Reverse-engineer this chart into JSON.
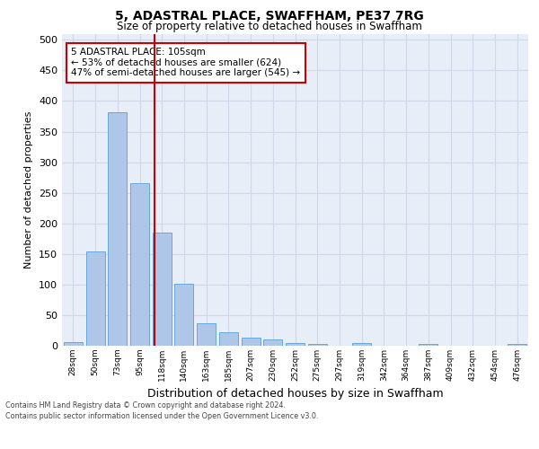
{
  "title1": "5, ADASTRAL PLACE, SWAFFHAM, PE37 7RG",
  "title2": "Size of property relative to detached houses in Swaffham",
  "xlabel": "Distribution of detached houses by size in Swaffham",
  "ylabel": "Number of detached properties",
  "footnote1": "Contains HM Land Registry data © Crown copyright and database right 2024.",
  "footnote2": "Contains public sector information licensed under the Open Government Licence v3.0.",
  "bar_labels": [
    "28sqm",
    "50sqm",
    "73sqm",
    "95sqm",
    "118sqm",
    "140sqm",
    "163sqm",
    "185sqm",
    "207sqm",
    "230sqm",
    "252sqm",
    "275sqm",
    "297sqm",
    "319sqm",
    "342sqm",
    "364sqm",
    "387sqm",
    "409sqm",
    "432sqm",
    "454sqm",
    "476sqm"
  ],
  "bar_values": [
    6,
    154,
    381,
    265,
    185,
    101,
    36,
    22,
    13,
    10,
    4,
    3,
    0,
    4,
    0,
    0,
    3,
    0,
    0,
    0,
    3
  ],
  "bar_color": "#aec6e8",
  "bar_edge_color": "#5a9fd4",
  "vline_color": "#cc0000",
  "annotation_text": "5 ADASTRAL PLACE: 105sqm\n← 53% of detached houses are smaller (624)\n47% of semi-detached houses are larger (545) →",
  "annotation_box_color": "white",
  "annotation_box_edge": "#cc0000",
  "ylim": [
    0,
    510
  ],
  "yticks": [
    0,
    50,
    100,
    150,
    200,
    250,
    300,
    350,
    400,
    450,
    500
  ],
  "grid_color": "#d0d8e8",
  "plot_bg_color": "#e8eef8",
  "vline_pos": 3.65
}
